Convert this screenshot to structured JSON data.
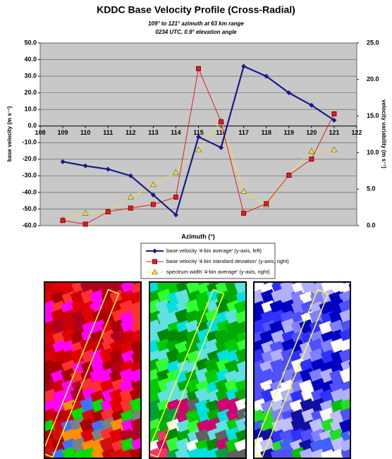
{
  "chart_data": {
    "type": "line",
    "title": "KDDC Base Velocity Profile (Cross-Radial)",
    "subtitle": [
      "109° to 121° azimuth at 63 km range",
      "0234 UTC, 0.9° elevation angle"
    ],
    "x_label": "Azimuth (°)",
    "y_label": "base velocity (m s⁻¹)",
    "y2_label": "velocity variability (m s⁻¹)",
    "x": [
      109,
      110,
      111,
      112,
      113,
      114,
      115,
      116,
      117,
      118,
      119,
      120,
      121
    ],
    "xlim": [
      108,
      122
    ],
    "xticks": [
      108,
      109,
      110,
      111,
      112,
      113,
      114,
      115,
      116,
      117,
      118,
      119,
      120,
      121,
      122
    ],
    "ylim": [
      -60,
      50
    ],
    "yticks": [
      {
        "value": -60,
        "label": "-60.0"
      },
      {
        "value": -50,
        "label": "-50.0"
      },
      {
        "value": -40,
        "label": "-40.0"
      },
      {
        "value": -30,
        "label": "-30.0"
      },
      {
        "value": -20,
        "label": "-20.0"
      },
      {
        "value": -10,
        "label": "-10.0"
      },
      {
        "value": 0,
        "label": "0.0"
      },
      {
        "value": 10,
        "label": "10.0"
      },
      {
        "value": 20,
        "label": "20.0"
      },
      {
        "value": 30,
        "label": "30.0"
      },
      {
        "value": 40,
        "label": "40.0"
      },
      {
        "value": 50,
        "label": "50.0"
      }
    ],
    "y2lim": [
      0,
      25
    ],
    "y2ticks": [
      {
        "value": 0,
        "label": "0.0"
      },
      {
        "value": 5,
        "label": "5.0"
      },
      {
        "value": 10,
        "label": "10.0"
      },
      {
        "value": 15,
        "label": "15.0"
      },
      {
        "value": 20,
        "label": "20.0"
      },
      {
        "value": 25,
        "label": "25.0"
      }
    ],
    "grid": true,
    "series": [
      {
        "name": "base velocity '4-bin average' (y-axis, left)",
        "color": "#1a1a8c",
        "marker": "diamond",
        "axis": "y",
        "values": [
          -21.5,
          -24,
          -26,
          -30,
          -41.5,
          -53.5,
          -6.5,
          -13,
          36,
          30,
          20,
          12.5,
          3.5
        ]
      },
      {
        "name": "base velocity '4-bin standard deviation' (y-axis, right)",
        "color": "#e02020",
        "marker": "square",
        "axis": "y2",
        "values": [
          0.7,
          0.2,
          1.9,
          2.4,
          2.9,
          3.9,
          21.5,
          14.2,
          1.7,
          3.0,
          6.9,
          9.1,
          15.3
        ]
      },
      {
        "name": "spectrum width '4-bin average' (y-axis, right)",
        "color": "#f0e040",
        "marker": "triangle",
        "axis": "y2",
        "values": [
          0.8,
          1.7,
          1.9,
          3.9,
          5.6,
          7.3,
          10.4,
          14.3,
          4.7,
          2.8,
          6.9,
          10.2,
          10.4
        ]
      }
    ]
  }
}
